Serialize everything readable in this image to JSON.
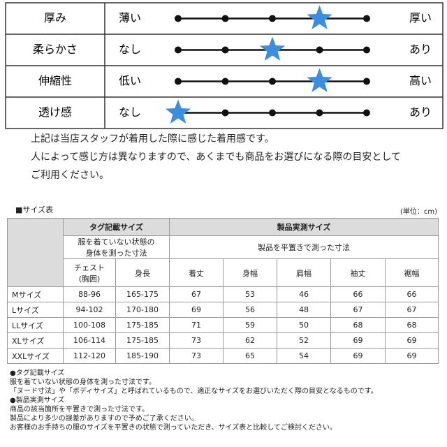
{
  "feel": {
    "rows": [
      {
        "label": "厚み",
        "left": "薄い",
        "right": "厚い",
        "level": 4
      },
      {
        "label": "柔らかさ",
        "left": "なし",
        "right": "あり",
        "level": 3
      },
      {
        "label": "伸縮性",
        "left": "低い",
        "right": "高い",
        "level": 4
      },
      {
        "label": "透け感",
        "left": "なし",
        "right": "あり",
        "level": 1
      }
    ]
  },
  "notes": [
    "上記は当店スタッフが着用した際に感じた着用感です。",
    "人によって感じ方は異なりますので、あくまでも商品をお選びになる際の目安として",
    "ご利用ください。"
  ],
  "size_table": {
    "title": "■サイズ表",
    "unit": "(単位：cm)",
    "group_headers": [
      "タグ記載サイズ",
      "製品実測サイズ"
    ],
    "group_descriptions": [
      "服を着ていない状態の\n身体を測った寸法",
      "製品を平置きで測った寸法"
    ],
    "columns": [
      "チェスト\n(胸囲)",
      "身長",
      "着丈",
      "身幅",
      "肩幅",
      "袖丈",
      "裾幅"
    ],
    "rows": [
      [
        "Mサイズ",
        "88-96",
        "165-175",
        67,
        53,
        46,
        66,
        66
      ],
      [
        "Lサイズ",
        "94-102",
        "170-180",
        69,
        56,
        48,
        67,
        67
      ],
      [
        "LLサイズ",
        "100-108",
        "175-185",
        71,
        59,
        50,
        68,
        68
      ],
      [
        "XLサイズ",
        "106-114",
        "175-185",
        73,
        62,
        52,
        69,
        69
      ],
      [
        "XXLサイズ",
        "112-120",
        "185-190",
        73,
        65,
        54,
        69,
        69
      ]
    ]
  },
  "footnotes": [
    "●タグ記載サイズ",
    "服を着ていない状態の身体を測った寸法です。",
    "「ヌード寸法」や「ボディサイズ」と呼ばれているもので、適正なサイズをお選びいただく際の目安となるものです。",
    "●製品実測サイズ",
    "商品の該当箇所を平置きで測った寸法です。",
    "製品により多少の誤差がありますので予めご了承ください。",
    "お客様のお手持ちの服のサイズを平置きの状態で測っていただき、サイズ表と比較してご検討ください。"
  ]
}
